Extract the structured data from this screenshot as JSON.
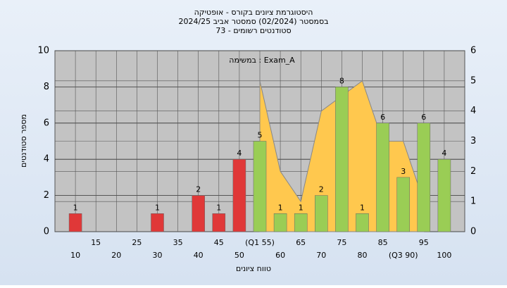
{
  "chart_data": {
    "type": "bar",
    "title": "היסטוגרמת ציונים בקורס - אופטיקה",
    "subtitle": [
      "בסמסטר  (02/2024)  סמסטר אביב 2024/25",
      "סטודנטים רשומים - 73"
    ],
    "annotation": "במשימה : Exam_A",
    "x_label": "טווח ציונים",
    "y_label": "מספר סטודנטים",
    "categories": [
      "10",
      "15",
      "20",
      "25",
      "30",
      "35",
      "40",
      "45",
      "50",
      "(Q1 55)",
      "60",
      "65",
      "70",
      "75",
      "80",
      "85",
      "(Q3 90)",
      "95",
      "100"
    ],
    "series": [
      {
        "values": [
          1,
          0,
          0,
          0,
          1,
          0,
          2,
          1,
          4,
          5,
          1,
          1,
          2,
          8,
          1,
          6,
          3,
          6,
          4
        ],
        "colors": [
          "#e03838",
          "#e03838",
          "#e03838",
          "#e03838",
          "#e03838",
          "#e03838",
          "#e03838",
          "#e03838",
          "#e03838",
          "#9acd55",
          "#9acd55",
          "#9acd55",
          "#9acd55",
          "#9acd55",
          "#9acd55",
          "#9acd55",
          "#9acd55",
          "#9acd55",
          "#9acd55"
        ]
      },
      {
        "type": "area",
        "axis": "y2",
        "color": "#ffc84e",
        "values": [
          null,
          null,
          null,
          null,
          null,
          null,
          null,
          null,
          null,
          5,
          2,
          1,
          4,
          4.5,
          5,
          3,
          3,
          1,
          null
        ]
      }
    ],
    "ylim": [
      0,
      10
    ],
    "yticks": [
      0,
      2,
      4,
      6,
      8,
      10
    ],
    "y2lim": [
      0,
      6
    ],
    "y2ticks": [
      0,
      1,
      2,
      3,
      4,
      5,
      6
    ],
    "grid": true
  }
}
